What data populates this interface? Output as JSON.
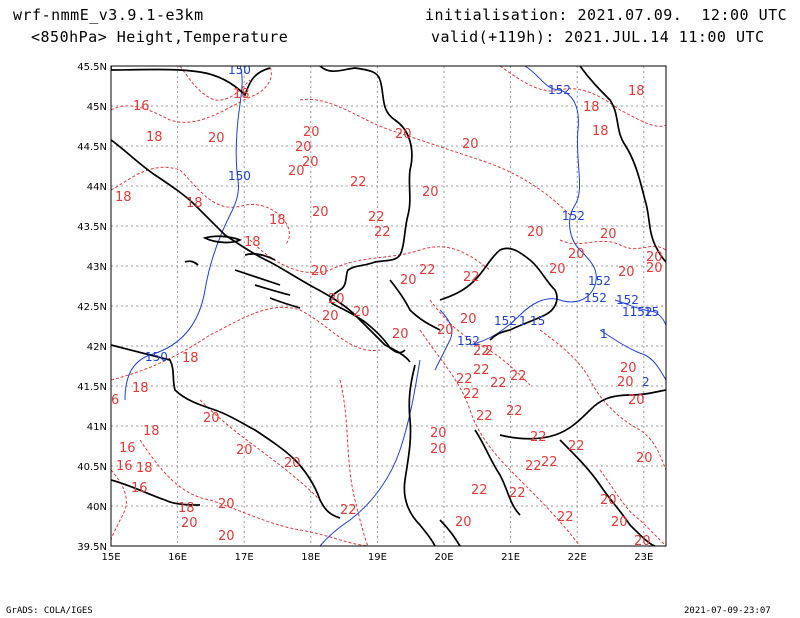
{
  "header": {
    "model": "wrf-nmmE_v3.9.1-e3km",
    "field": "<850hPa> Height,Temperature",
    "init": "initialisation: 2021.07.09.  12:00 UTC",
    "valid": "valid(+119h): 2021.JUL.14 11:00 UTC"
  },
  "footer": {
    "left": "GrADS: COLA/IGES",
    "right": "2021-07-09-23:07"
  },
  "axes": {
    "lat_labels": [
      "45.5N",
      "45N",
      "44.5N",
      "44N",
      "43.5N",
      "43N",
      "42.5N",
      "42N",
      "41.5N",
      "41N",
      "40.5N",
      "40N",
      "39.5N"
    ],
    "lon_labels": [
      "15E",
      "16E",
      "17E",
      "18E",
      "19E",
      "20E",
      "21E",
      "22E",
      "23E"
    ]
  },
  "colors": {
    "temperature": "#e23a3a",
    "height": "#2040d0",
    "coast": "#000000",
    "grid": "#9a9a9a"
  },
  "temperature_labels": [
    "16",
    "18",
    "20",
    "22",
    "16",
    "18",
    "20",
    "22",
    "18",
    "20",
    "22",
    "18",
    "20"
  ],
  "height_labels": [
    "150",
    "152",
    "15"
  ]
}
